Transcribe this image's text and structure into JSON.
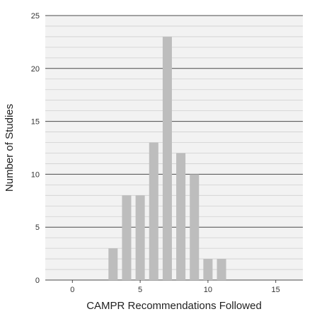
{
  "chart_data": {
    "type": "bar",
    "xlabel": "CAMPR Recommendations Followed",
    "ylabel": "Number of Studies",
    "xlim": [
      -2,
      17
    ],
    "ylim": [
      0,
      25
    ],
    "x_ticks": [
      0,
      5,
      10,
      15
    ],
    "y_ticks": [
      0,
      5,
      10,
      15,
      20,
      25
    ],
    "y_minor_step": 1,
    "grid": true,
    "x": [
      3,
      4,
      5,
      6,
      7,
      8,
      9,
      10,
      11
    ],
    "values": [
      3,
      8,
      8,
      13,
      23,
      12,
      10,
      2,
      2
    ],
    "bar_color": "#bdbdbd",
    "plot_background": "#f2f2f2"
  }
}
